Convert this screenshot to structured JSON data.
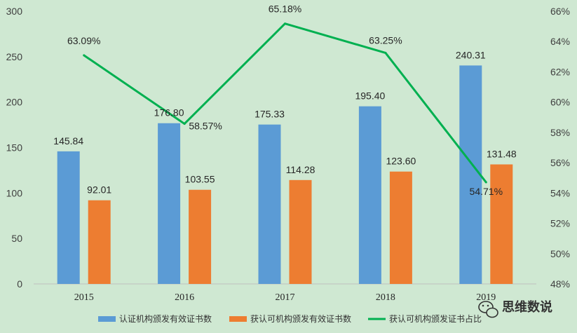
{
  "chart_data": {
    "type": "bar",
    "categories": [
      "2015",
      "2016",
      "2017",
      "2018",
      "2019"
    ],
    "series": [
      {
        "name": "认证机构颁发有效证书数",
        "kind": "bar",
        "axis": "left",
        "color": "#5b9bd5",
        "values": [
          145.84,
          176.8,
          175.33,
          195.4,
          240.31
        ],
        "labels": [
          "145.84",
          "176.80",
          "175.33",
          "195.40",
          "240.31"
        ]
      },
      {
        "name": "获认可机构颁发有效证书数",
        "kind": "bar",
        "axis": "left",
        "color": "#ed7d31",
        "values": [
          92.01,
          103.55,
          114.28,
          123.6,
          131.48
        ],
        "labels": [
          "92.01",
          "103.55",
          "114.28",
          "123.60",
          "131.48"
        ]
      },
      {
        "name": "获认可机构颁发证书占比",
        "kind": "line",
        "axis": "right",
        "color": "#00b050",
        "values": [
          63.09,
          58.57,
          65.18,
          63.25,
          54.71
        ],
        "labels": [
          "63.09%",
          "58.57%",
          "65.18%",
          "63.25%",
          "54.71%"
        ]
      }
    ],
    "y_left": {
      "min": 0,
      "max": 300,
      "ticks": [
        "0",
        "50",
        "100",
        "150",
        "200",
        "250",
        "300"
      ]
    },
    "y_right": {
      "min": 48,
      "max": 66,
      "ticks": [
        "48%",
        "50%",
        "52%",
        "54%",
        "56%",
        "58%",
        "60%",
        "62%",
        "64%",
        "66%"
      ]
    },
    "grid": false,
    "legend_position": "bottom"
  },
  "watermark": {
    "text": "思维数说",
    "icon": "wechat-icon"
  }
}
